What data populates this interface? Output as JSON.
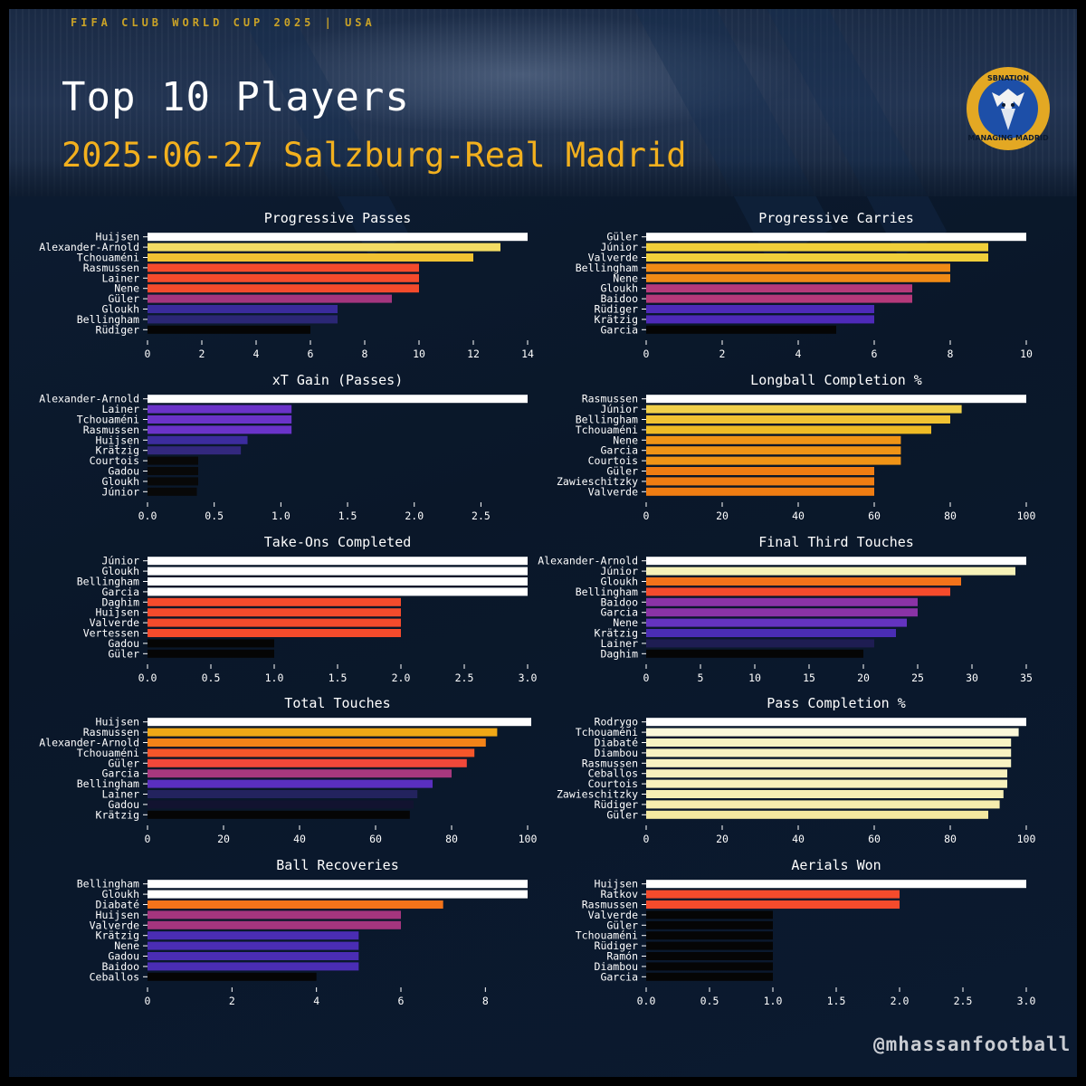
{
  "header": {
    "event": "FIFA CLUB WORLD CUP 2025 | USA",
    "title": "Top 10 Players",
    "subtitle": "2025-06-27 Salzburg-Real Madrid",
    "logo_text_top": "SBNATION",
    "logo_text_bottom": "MANAGING MADRID"
  },
  "footer": {
    "credit": "@mhassanfootball"
  },
  "chart_data": [
    {
      "type": "bar",
      "orientation": "horizontal",
      "title": "Progressive Passes",
      "categories": [
        "Huijsen",
        "Alexander-Arnold",
        "Tchouaméni",
        "Rasmussen",
        "Lainer",
        "Nene",
        "Güler",
        "Gloukh",
        "Bellingham",
        "Rüdiger"
      ],
      "values": [
        14,
        13,
        12,
        10,
        10,
        10,
        9,
        7,
        7,
        6
      ],
      "colors": [
        "#ffffff",
        "#f3dc64",
        "#f1c232",
        "#f54b2c",
        "#f54b2c",
        "#f54b2c",
        "#a4357e",
        "#3a2b9c",
        "#2b2775",
        "#050505"
      ],
      "xlim": [
        0,
        14
      ],
      "xticks": [
        "0",
        "2",
        "4",
        "6",
        "8",
        "10",
        "12",
        "14"
      ]
    },
    {
      "type": "bar",
      "orientation": "horizontal",
      "title": "Progressive Carries",
      "categories": [
        "Güler",
        "Júnior",
        "Valverde",
        "Bellingham",
        "Nene",
        "Gloukh",
        "Baidoo",
        "Rüdiger",
        "Krätzig",
        "Garcia"
      ],
      "values": [
        10,
        9,
        9,
        8,
        8,
        7,
        7,
        6,
        6,
        5
      ],
      "colors": [
        "#ffffff",
        "#f0cf3a",
        "#f0cf3a",
        "#f08a15",
        "#f08a15",
        "#b5397a",
        "#b5397a",
        "#4e2ab8",
        "#4e2ab8",
        "#050505"
      ],
      "xlim": [
        0,
        10
      ],
      "xticks": [
        "0",
        "2",
        "4",
        "6",
        "8",
        "10"
      ]
    },
    {
      "type": "bar",
      "orientation": "horizontal",
      "title": "xT Gain (Passes)",
      "categories": [
        "Alexander-Arnold",
        "Lainer",
        "Tchouaméni",
        "Rasmussen",
        "Huijsen",
        "Krätzig",
        "Courtois",
        "Gadou",
        "Gloukh",
        "Júnior"
      ],
      "values": [
        2.85,
        1.08,
        1.08,
        1.08,
        0.75,
        0.7,
        0.38,
        0.38,
        0.38,
        0.37
      ],
      "colors": [
        "#ffffff",
        "#6a33c9",
        "#6a33c9",
        "#6a33c9",
        "#3c2c9e",
        "#33287e",
        "#080808",
        "#080808",
        "#080808",
        "#080808"
      ],
      "xlim": [
        0,
        2.85
      ],
      "xticks": [
        "0.0",
        "0.5",
        "1.0",
        "1.5",
        "2.0",
        "2.5"
      ]
    },
    {
      "type": "bar",
      "orientation": "horizontal",
      "title": "Longball Completion %",
      "categories": [
        "Rasmussen",
        "Júnior",
        "Bellingham",
        "Tchouaméni",
        "Nene",
        "Garcia",
        "Courtois",
        "Güler",
        "Zawieschitzky",
        "Valverde"
      ],
      "values": [
        100,
        83,
        80,
        75,
        67,
        67,
        67,
        60,
        60,
        60
      ],
      "colors": [
        "#ffffff",
        "#f1d04a",
        "#f1c232",
        "#efbb25",
        "#f09416",
        "#f09416",
        "#f09416",
        "#f07d12",
        "#f07d12",
        "#f07d12"
      ],
      "xlim": [
        0,
        100
      ],
      "xticks": [
        "0",
        "20",
        "40",
        "60",
        "80",
        "100"
      ]
    },
    {
      "type": "bar",
      "orientation": "horizontal",
      "title": "Take-Ons Completed",
      "categories": [
        "Júnior",
        "Gloukh",
        "Bellingham",
        "Garcia",
        "Daghim",
        "Huijsen",
        "Valverde",
        "Vertessen",
        "Gadou",
        "Güler"
      ],
      "values": [
        3,
        3,
        3,
        3,
        2,
        2,
        2,
        2,
        1,
        1
      ],
      "colors": [
        "#ffffff",
        "#ffffff",
        "#ffffff",
        "#ffffff",
        "#f54b2c",
        "#f54b2c",
        "#f54b2c",
        "#f54b2c",
        "#050505",
        "#050505"
      ],
      "xlim": [
        0,
        3
      ],
      "xticks": [
        "0.0",
        "0.5",
        "1.0",
        "1.5",
        "2.0",
        "2.5",
        "3.0"
      ]
    },
    {
      "type": "bar",
      "orientation": "horizontal",
      "title": "Final Third Touches",
      "categories": [
        "Alexander-Arnold",
        "Júnior",
        "Gloukh",
        "Bellingham",
        "Baidoo",
        "Garcia",
        "Nene",
        "Krätzig",
        "Lainer",
        "Daghim"
      ],
      "values": [
        35,
        34,
        29,
        28,
        25,
        25,
        24,
        23,
        21,
        20
      ],
      "colors": [
        "#ffffff",
        "#f7f2b8",
        "#f3731a",
        "#f54b2c",
        "#8a33a6",
        "#8a33a6",
        "#6433c0",
        "#4a2db4",
        "#1e1d52",
        "#050505"
      ],
      "xlim": [
        0,
        35
      ],
      "xticks": [
        "0",
        "5",
        "10",
        "15",
        "20",
        "25",
        "30",
        "35"
      ]
    },
    {
      "type": "bar",
      "orientation": "horizontal",
      "title": "Total Touches",
      "categories": [
        "Huijsen",
        "Rasmussen",
        "Alexander-Arnold",
        "Tchouaméni",
        "Güler",
        "Garcia",
        "Bellingham",
        "Lainer",
        "Gadou",
        "Krätzig"
      ],
      "values": [
        101,
        92,
        89,
        86,
        84,
        80,
        75,
        71,
        70,
        69
      ],
      "colors": [
        "#ffffff",
        "#f0a816",
        "#f38318",
        "#f5562a",
        "#f1483a",
        "#a8387e",
        "#5a2fbf",
        "#23235e",
        "#121330",
        "#050505"
      ],
      "xlim": [
        0,
        100
      ],
      "xticks": [
        "0",
        "20",
        "40",
        "60",
        "80",
        "100"
      ]
    },
    {
      "type": "bar",
      "orientation": "horizontal",
      "title": "Pass Completion %",
      "categories": [
        "Rodrygo",
        "Tchouaméni",
        "Diabaté",
        "Diambou",
        "Rasmussen",
        "Ceballos",
        "Courtois",
        "Zawieschitzky",
        "Rüdiger",
        "Güler"
      ],
      "values": [
        100,
        98,
        96,
        96,
        96,
        95,
        95,
        94,
        93,
        90
      ],
      "colors": [
        "#ffffff",
        "#fbf8da",
        "#f8f2c2",
        "#f8f2c2",
        "#f8f2c2",
        "#f7f0bc",
        "#f7f0bc",
        "#f6eeb4",
        "#f6edae",
        "#f4e9a0"
      ],
      "xlim": [
        0,
        100
      ],
      "xticks": [
        "0",
        "20",
        "40",
        "60",
        "80",
        "100"
      ]
    },
    {
      "type": "bar",
      "orientation": "horizontal",
      "title": "Ball Recoveries",
      "categories": [
        "Bellingham",
        "Gloukh",
        "Diabaté",
        "Huijsen",
        "Valverde",
        "Krätzig",
        "Nene",
        "Gadou",
        "Baidoo",
        "Ceballos"
      ],
      "values": [
        9,
        9,
        7,
        6,
        6,
        5,
        5,
        5,
        5,
        4
      ],
      "colors": [
        "#ffffff",
        "#ffffff",
        "#f3731a",
        "#a4357e",
        "#a4357e",
        "#4a2db4",
        "#4a2db4",
        "#4a2db4",
        "#4a2db4",
        "#050505"
      ],
      "xlim": [
        0,
        9
      ],
      "xticks": [
        "0",
        "2",
        "4",
        "6",
        "8"
      ]
    },
    {
      "type": "bar",
      "orientation": "horizontal",
      "title": "Aerials Won",
      "categories": [
        "Huijsen",
        "Ratkov",
        "Rasmussen",
        "Valverde",
        "Güler",
        "Tchouaméni",
        "Rüdiger",
        "Ramón",
        "Diambou",
        "Garcia"
      ],
      "values": [
        3,
        2,
        2,
        1,
        1,
        1,
        1,
        1,
        1,
        1
      ],
      "colors": [
        "#ffffff",
        "#f54b2c",
        "#f54b2c",
        "#050505",
        "#050505",
        "#050505",
        "#050505",
        "#050505",
        "#050505",
        "#050505"
      ],
      "xlim": [
        0,
        3
      ],
      "xticks": [
        "0.0",
        "0.5",
        "1.0",
        "1.5",
        "2.0",
        "2.5",
        "3.0"
      ]
    }
  ]
}
